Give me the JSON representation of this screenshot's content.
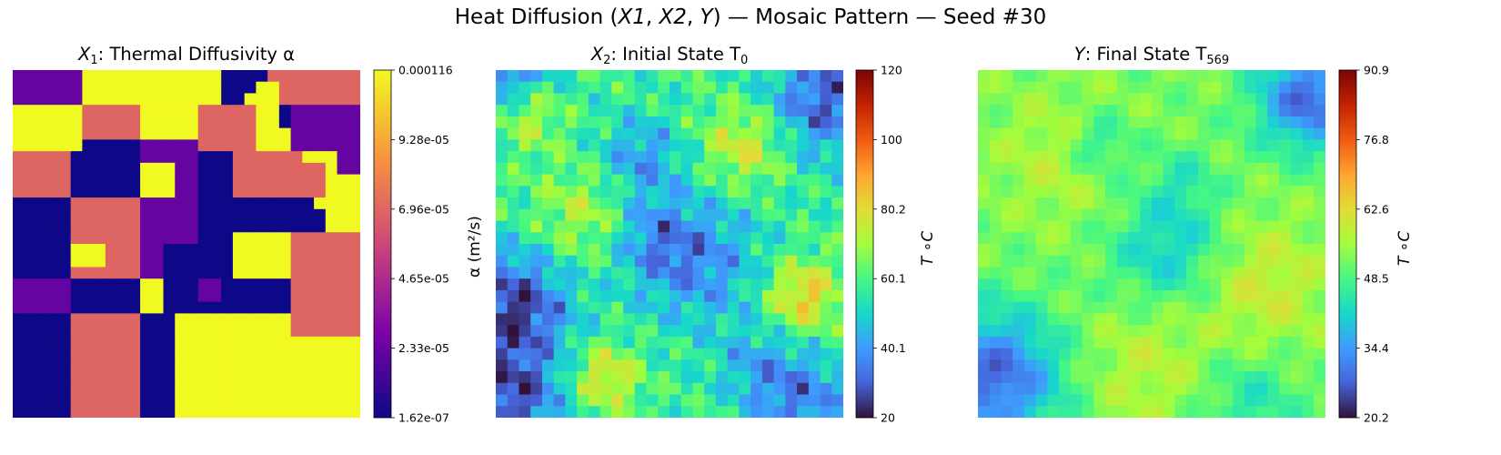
{
  "title": {
    "main_before": "Heat Diffusion (",
    "x1": "X1",
    "x2": "X2",
    "y": "Y",
    "main_after": ") — Mosaic Pattern  — Seed #30"
  },
  "panels": [
    {
      "title_var": "X",
      "title_sub": "1",
      "title_text": ": Thermal Diffusivity α",
      "cbar_label": "α (m²/s)",
      "cbar_ticks": [
        "0.000116",
        "9.28e-05",
        "6.96e-05",
        "4.65e-05",
        "2.33e-05",
        "1.62e-07"
      ],
      "colormap": "plasma"
    },
    {
      "title_var": "X",
      "title_sub": "2",
      "title_text": ": Initial State T",
      "title_sub2": "0",
      "cbar_label": "T ∘C",
      "cbar_ticks": [
        "120",
        "100",
        "80.2",
        "60.1",
        "40.1",
        "20"
      ],
      "colormap": "turbo"
    },
    {
      "title_var": "Y",
      "title_text": ": Final State T",
      "title_sub2": "569",
      "cbar_label": "T ∘C",
      "cbar_ticks": [
        "90.9",
        "76.8",
        "62.6",
        "48.5",
        "34.4",
        "20.2"
      ],
      "colormap": "turbo"
    }
  ],
  "chart_data": [
    {
      "type": "heatmap",
      "title": "X1: Thermal Diffusivity α",
      "colorbar_label": "α (m²/s)",
      "colorbar_range": [
        1.62e-07,
        0.000116
      ],
      "colormap": "plasma",
      "grid_size": 30,
      "levels": [
        1.62e-07,
        2.3e-05,
        6.96e-05,
        0.000116
      ],
      "values_level_index": [
        "111111333333333333000022222222",
        "111111333333333333000332222222",
        "111111333333333333003332222222",
        "333333222223333322222330111111",
        "333333222223333322222330111111",
        "333333222223333322222333111111",
        "333333000001111122222333111111",
        "222220000001111100022222233311",
        "222220000003331100022222222311",
        "222220000003331100022222222333",
        "222220000003331100022222222333",
        "000002222221111100000000003333",
        "000002222221111100000000000333",
        "000002222221111100000000000333",
        "000002222221111100033333222222",
        "000003332221100000033333222222",
        "000003332221100000033333222222",
        "000002222221100000033333222222",
        "111110000003300011000000222222",
        "111110000003300011000000222222",
        "111110000003300000000000222222",
        "000002222220003333333333222222",
        "000002222220003333333333222222",
        "000002222220003333333333333333",
        "000002222220003333333333333333",
        "000002222220003333333333333333",
        "000002222220003333333333333333",
        "000002222220003333333333333333",
        "000002222220003333333333333333",
        "000002222220003333333333333333"
      ]
    },
    {
      "type": "heatmap",
      "title": "X2: Initial State T0",
      "colorbar_label": "T ∘C",
      "colorbar_range": [
        20,
        120
      ],
      "colormap": "turbo",
      "grid_size": 30,
      "approximate": true
    },
    {
      "type": "heatmap",
      "title": "Y: Final State T569",
      "colorbar_label": "T ∘C",
      "colorbar_range": [
        20.2,
        90.9
      ],
      "colormap": "turbo",
      "grid_size": 30,
      "approximate": true
    }
  ]
}
